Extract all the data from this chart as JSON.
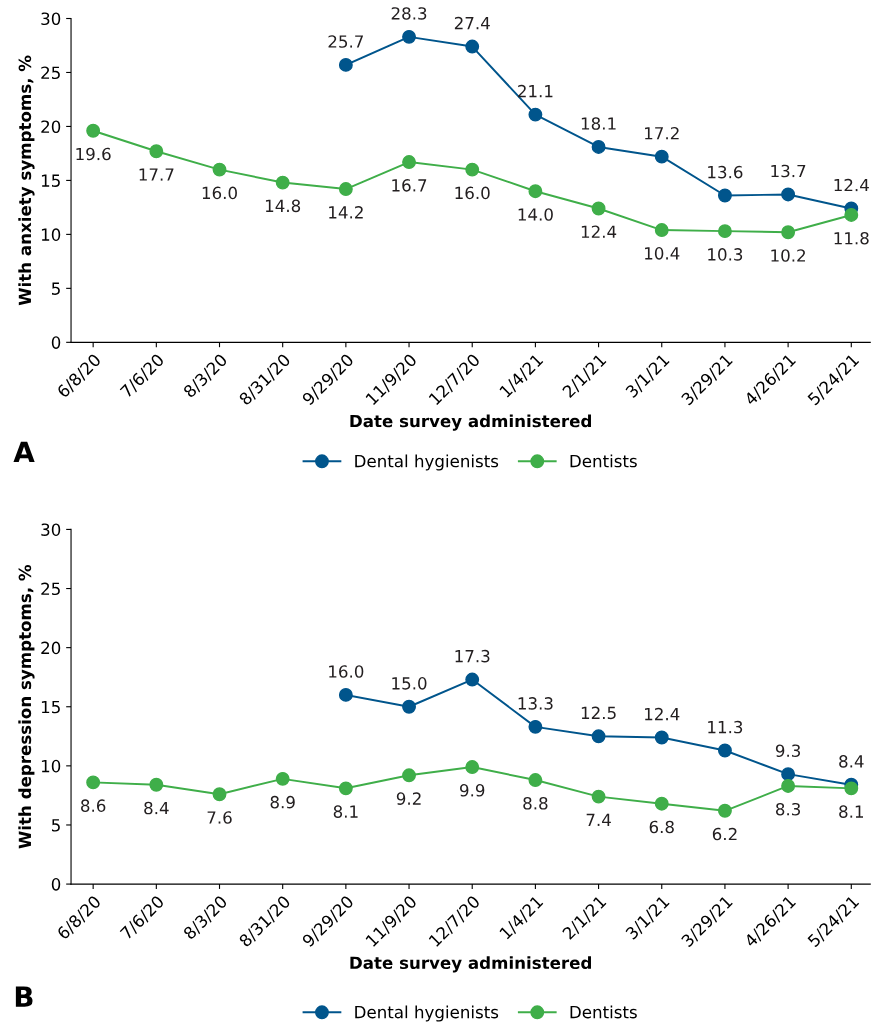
{
  "chart_data": [
    {
      "type": "line",
      "xlabel": "Date survey administered",
      "ylabel": "With anxiety symptoms, %",
      "annotations": [
        "A"
      ],
      "categories": [
        "6/8/20",
        "7/6/20",
        "8/3/20",
        "8/31/20",
        "9/29/20",
        "11/9/20",
        "12/7/20",
        "1/4/21",
        "2/1/21",
        "3/1/21",
        "3/29/21",
        "4/26/21",
        "5/24/21"
      ],
      "series": [
        {
          "name": "Dental hygienists",
          "color": "#00558c",
          "values": [
            null,
            null,
            null,
            null,
            25.7,
            28.3,
            27.4,
            21.1,
            18.1,
            17.2,
            13.6,
            13.7,
            12.4
          ],
          "value_labels": [
            null,
            null,
            null,
            null,
            "25.7",
            "28.3",
            "27.4",
            "21.1",
            "18.1",
            "17.2",
            "13.6",
            "13.7",
            "12.4"
          ]
        },
        {
          "name": "Dentists",
          "color": "#3fae49",
          "values": [
            19.6,
            17.7,
            16.0,
            14.8,
            14.2,
            16.7,
            16.0,
            14.0,
            12.4,
            10.4,
            10.3,
            10.2,
            11.8
          ],
          "value_labels": [
            "19.6",
            "17.7",
            "16.0",
            "14.8",
            "14.2",
            "16.7",
            "16.0",
            "14.0",
            "12.4",
            "10.4",
            "10.3",
            "10.2",
            "11.8"
          ]
        }
      ],
      "ylim": [
        0,
        30
      ],
      "yticks": [
        0,
        5,
        10,
        15,
        20,
        25,
        30
      ],
      "legend": "bottom",
      "grid": false,
      "marker": "circle",
      "line_style": "solid"
    },
    {
      "type": "line",
      "xlabel": "Date survey administered",
      "ylabel": "With depression symptoms, %",
      "annotations": [
        "B"
      ],
      "categories": [
        "6/8/20",
        "7/6/20",
        "8/3/20",
        "8/31/20",
        "9/29/20",
        "11/9/20",
        "12/7/20",
        "1/4/21",
        "2/1/21",
        "3/1/21",
        "3/29/21",
        "4/26/21",
        "5/24/21"
      ],
      "series": [
        {
          "name": "Dental hygienists",
          "color": "#00558c",
          "values": [
            null,
            null,
            null,
            null,
            16.0,
            15.0,
            17.3,
            13.3,
            12.5,
            12.4,
            11.3,
            9.3,
            8.4
          ],
          "value_labels": [
            null,
            null,
            null,
            null,
            "16.0",
            "15.0",
            "17.3",
            "13.3",
            "12.5",
            "12.4",
            "11.3",
            "9.3",
            "8.4"
          ]
        },
        {
          "name": "Dentists",
          "color": "#3fae49",
          "values": [
            8.6,
            8.4,
            7.6,
            8.9,
            8.1,
            9.2,
            9.9,
            8.8,
            7.4,
            6.8,
            6.2,
            8.3,
            8.1
          ],
          "value_labels": [
            "8.6",
            "8.4",
            "7.6",
            "8.9",
            "8.1",
            "9.2",
            "9.9",
            "8.8",
            "7.4",
            "6.8",
            "6.2",
            "8.3",
            "8.1"
          ]
        }
      ],
      "ylim": [
        0,
        30
      ],
      "yticks": [
        0,
        5,
        10,
        15,
        20,
        25,
        30
      ],
      "legend": "bottom",
      "grid": false,
      "marker": "circle",
      "line_style": "solid"
    }
  ]
}
